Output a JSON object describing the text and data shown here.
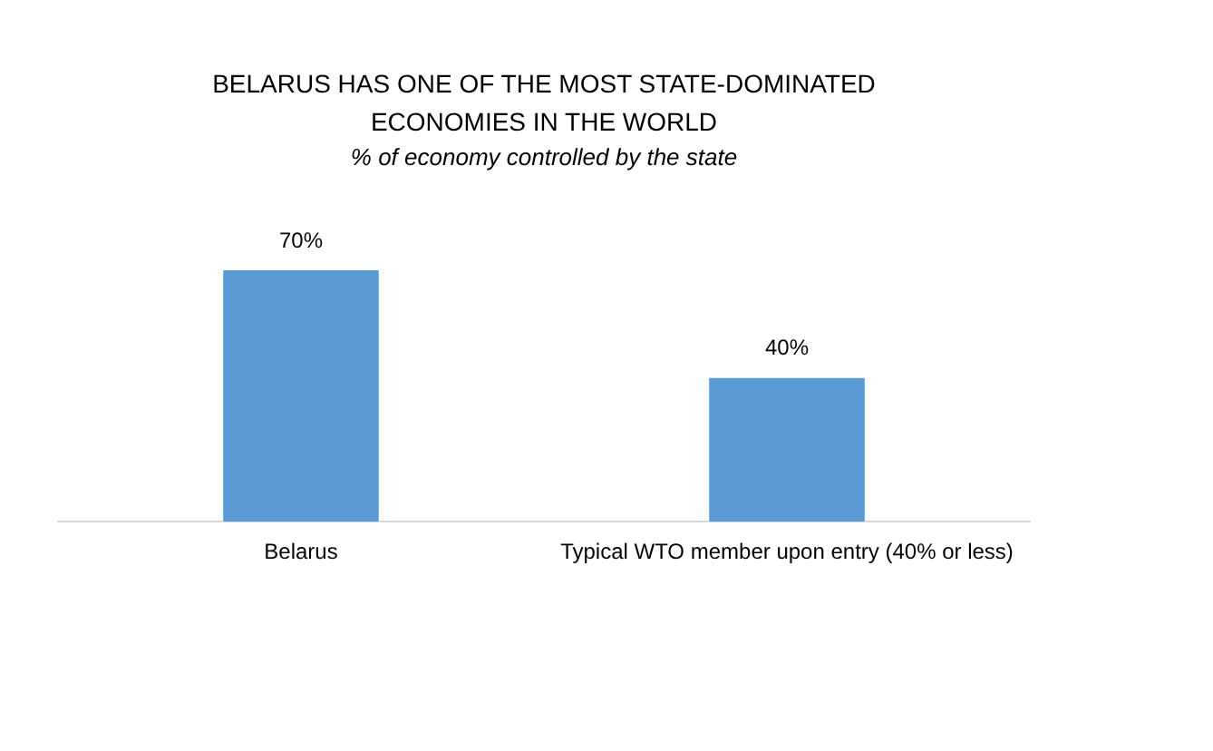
{
  "chart_data": {
    "type": "bar",
    "title": "BELARUS HAS ONE OF THE MOST STATE-DOMINATED ECONOMIES IN THE WORLD",
    "subtitle": "% of economy controlled by the state",
    "categories": [
      "Belarus",
      "Typical WTO member upon entry (40% or less)"
    ],
    "values": [
      70,
      40
    ],
    "color": "#5b9bd5",
    "value_labels": [
      "70%",
      "40%"
    ]
  }
}
